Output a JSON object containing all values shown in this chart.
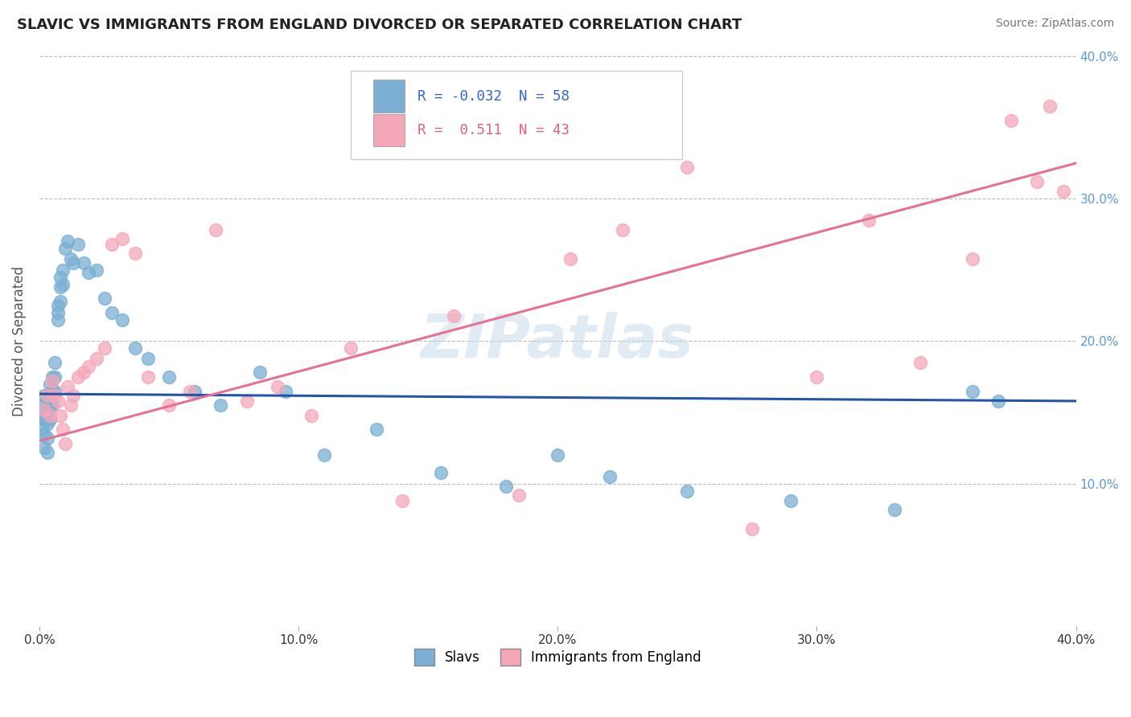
{
  "title": "SLAVIC VS IMMIGRANTS FROM ENGLAND DIVORCED OR SEPARATED CORRELATION CHART",
  "source": "Source: ZipAtlas.com",
  "ylabel": "Divorced or Separated",
  "xlim": [
    0.0,
    0.4
  ],
  "ylim": [
    0.0,
    0.4
  ],
  "xtick_labels": [
    "0.0%",
    "10.0%",
    "20.0%",
    "30.0%",
    "40.0%"
  ],
  "xtick_vals": [
    0.0,
    0.1,
    0.2,
    0.3,
    0.4
  ],
  "right_ytick_labels": [
    "10.0%",
    "20.0%",
    "30.0%",
    "40.0%"
  ],
  "right_ytick_vals": [
    0.1,
    0.2,
    0.3,
    0.4
  ],
  "slavs_color": "#7bafd4",
  "immigrants_color": "#f4a7b9",
  "slavs_line_color": "#2255aa",
  "immigrants_line_color": "#e87090",
  "legend_slavs_R": "-0.032",
  "legend_slavs_N": "58",
  "legend_immigrants_R": "0.511",
  "legend_immigrants_N": "43",
  "legend_label_slavs": "Slavs",
  "legend_label_immigrants": "Immigrants from England",
  "watermark": "ZIPatlas",
  "background_color": "#ffffff",
  "grid_color": "#bbbbbb",
  "slavs_line_start_y": 0.163,
  "slavs_line_end_y": 0.158,
  "immigrants_line_start_y": 0.13,
  "immigrants_line_end_y": 0.325,
  "slavs_x": [
    0.001,
    0.001,
    0.001,
    0.002,
    0.002,
    0.002,
    0.002,
    0.003,
    0.003,
    0.003,
    0.003,
    0.003,
    0.004,
    0.004,
    0.004,
    0.005,
    0.005,
    0.005,
    0.006,
    0.006,
    0.006,
    0.007,
    0.007,
    0.007,
    0.008,
    0.008,
    0.008,
    0.009,
    0.009,
    0.01,
    0.011,
    0.012,
    0.013,
    0.015,
    0.017,
    0.019,
    0.022,
    0.025,
    0.028,
    0.032,
    0.037,
    0.042,
    0.05,
    0.06,
    0.07,
    0.085,
    0.095,
    0.11,
    0.13,
    0.155,
    0.18,
    0.2,
    0.22,
    0.25,
    0.29,
    0.33,
    0.36,
    0.37
  ],
  "slavs_y": [
    0.155,
    0.148,
    0.138,
    0.162,
    0.145,
    0.135,
    0.125,
    0.16,
    0.152,
    0.142,
    0.132,
    0.122,
    0.17,
    0.155,
    0.145,
    0.175,
    0.165,
    0.155,
    0.185,
    0.175,
    0.165,
    0.225,
    0.22,
    0.215,
    0.245,
    0.238,
    0.228,
    0.25,
    0.24,
    0.265,
    0.27,
    0.258,
    0.255,
    0.268,
    0.255,
    0.248,
    0.25,
    0.23,
    0.22,
    0.215,
    0.195,
    0.188,
    0.175,
    0.165,
    0.155,
    0.178,
    0.165,
    0.12,
    0.138,
    0.108,
    0.098,
    0.12,
    0.105,
    0.095,
    0.088,
    0.082,
    0.165,
    0.158
  ],
  "immigrants_x": [
    0.002,
    0.003,
    0.004,
    0.005,
    0.006,
    0.007,
    0.008,
    0.009,
    0.01,
    0.011,
    0.012,
    0.013,
    0.015,
    0.017,
    0.019,
    0.022,
    0.025,
    0.028,
    0.032,
    0.037,
    0.042,
    0.05,
    0.058,
    0.068,
    0.08,
    0.092,
    0.105,
    0.12,
    0.14,
    0.16,
    0.185,
    0.205,
    0.225,
    0.25,
    0.275,
    0.3,
    0.32,
    0.34,
    0.36,
    0.375,
    0.385,
    0.39,
    0.395
  ],
  "immigrants_y": [
    0.152,
    0.162,
    0.148,
    0.172,
    0.162,
    0.158,
    0.148,
    0.138,
    0.128,
    0.168,
    0.155,
    0.162,
    0.175,
    0.178,
    0.182,
    0.188,
    0.195,
    0.268,
    0.272,
    0.262,
    0.175,
    0.155,
    0.165,
    0.278,
    0.158,
    0.168,
    0.148,
    0.195,
    0.088,
    0.218,
    0.092,
    0.258,
    0.278,
    0.322,
    0.068,
    0.175,
    0.285,
    0.185,
    0.258,
    0.355,
    0.312,
    0.365,
    0.305
  ]
}
